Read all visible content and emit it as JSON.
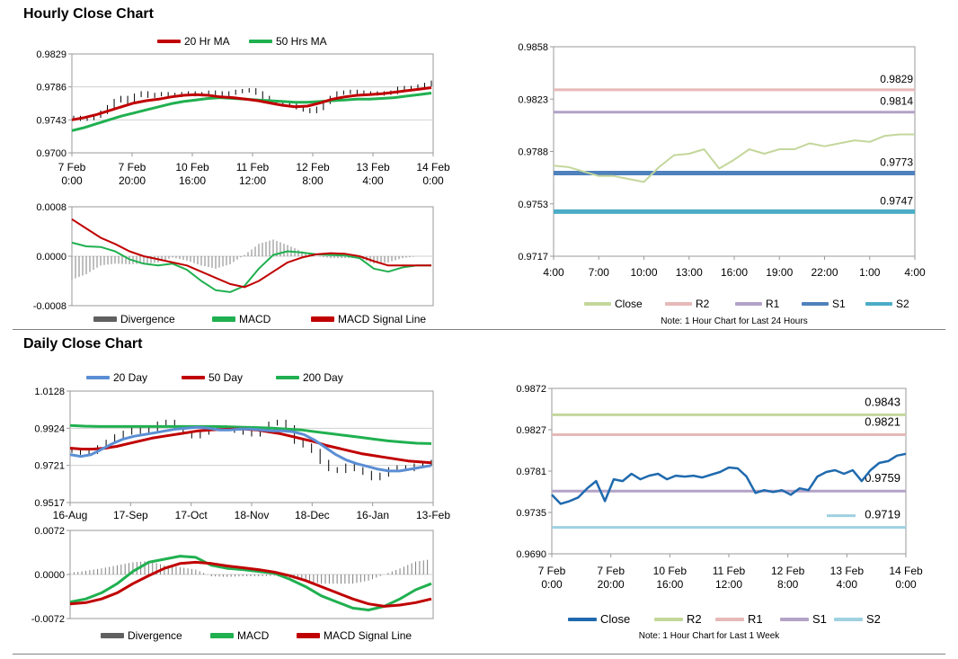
{
  "sections": {
    "hourly_title": "Hourly Close Chart",
    "daily_title": "Daily Close Chart"
  },
  "chart_data": [
    {
      "id": "hourly-price",
      "type": "line",
      "legend": [
        {
          "name": "20 Hr MA",
          "color": "#c00000"
        },
        {
          "name": "50 Hrs MA",
          "color": "#20b050"
        }
      ],
      "legend_placement": "top",
      "ylim": [
        0.97,
        0.9829
      ],
      "yticks": [
        "0.9829",
        "0.9786",
        "0.9743",
        "0.9700"
      ],
      "xticks": [
        [
          "7 Feb",
          "0:00"
        ],
        [
          "7 Feb",
          "20:00"
        ],
        [
          "10 Feb",
          "16:00"
        ],
        [
          "11 Feb",
          "12:00"
        ],
        [
          "12 Feb",
          "8:00"
        ],
        [
          "13 Feb",
          "4:00"
        ],
        [
          "14 Feb",
          "0:00"
        ]
      ],
      "grid": true,
      "price_series": [
        0.9746,
        0.9744,
        0.9745,
        0.9748,
        0.9753,
        0.976,
        0.9768,
        0.9772,
        0.9766,
        0.9775,
        0.9778,
        0.9774,
        0.9776,
        0.9777,
        0.9776,
        0.9775,
        0.9777,
        0.9778,
        0.9776,
        0.9777,
        0.9779,
        0.9778,
        0.9776,
        0.9778,
        0.978,
        0.9781,
        0.9782,
        0.9778,
        0.9772,
        0.9766,
        0.9764,
        0.9763,
        0.9762,
        0.9759,
        0.9756,
        0.9754,
        0.9758,
        0.9766,
        0.9772,
        0.9778,
        0.9779,
        0.978,
        0.9779,
        0.9778,
        0.9778,
        0.9777,
        0.9778,
        0.9779,
        0.9784,
        0.9785,
        0.9784,
        0.9787,
        0.9789,
        0.9792
      ],
      "series": [
        {
          "name": "20 Hr MA",
          "values": [
            0.9743,
            0.9746,
            0.975,
            0.9755,
            0.976,
            0.9765,
            0.9768,
            0.977,
            0.9773,
            0.9775,
            0.9776,
            0.9775,
            0.9773,
            0.9772,
            0.977,
            0.9768,
            0.9765,
            0.9762,
            0.976,
            0.9761,
            0.9765,
            0.977,
            0.9773,
            0.9775,
            0.9776,
            0.9777,
            0.9779,
            0.9781,
            0.9783,
            0.9785
          ]
        },
        {
          "name": "50 Hrs MA",
          "values": [
            0.9729,
            0.9733,
            0.9738,
            0.9743,
            0.9748,
            0.9752,
            0.9756,
            0.976,
            0.9764,
            0.9767,
            0.9769,
            0.9771,
            0.9772,
            0.9771,
            0.977,
            0.9769,
            0.9768,
            0.9767,
            0.9766,
            0.9766,
            0.9767,
            0.9768,
            0.9769,
            0.977,
            0.977,
            0.9771,
            0.9772,
            0.9774,
            0.9776,
            0.9778
          ]
        }
      ]
    },
    {
      "id": "hourly-macd",
      "type": "line",
      "legend": [
        {
          "name": "Divergence",
          "color": "#606060"
        },
        {
          "name": "MACD",
          "color": "#20b050"
        },
        {
          "name": "MACD Signal Line",
          "color": "#c00000"
        }
      ],
      "legend_placement": "bottom",
      "ylim": [
        -0.0008,
        0.0008
      ],
      "yticks": [
        "0.0008",
        "0.0000",
        "-0.0008"
      ],
      "grid": true,
      "series": [
        {
          "name": "MACD",
          "values": [
            0.00022,
            0.00016,
            0.00015,
            8e-05,
            -5e-05,
            -0.00012,
            -0.00015,
            -0.00012,
            -0.00022,
            -0.0004,
            -0.00055,
            -0.00058,
            -0.00048,
            -0.0002,
            2e-05,
            8e-05,
            6e-05,
            3e-05,
            2e-05,
            1e-05,
            -3e-05,
            -0.0002,
            -0.00025,
            -0.00018,
            -0.00015,
            -0.00015
          ]
        },
        {
          "name": "MACD Signal Line",
          "values": [
            0.0006,
            0.00045,
            0.0003,
            0.0002,
            8e-05,
            0.0,
            -5e-05,
            -0.0001,
            -0.00015,
            -0.00025,
            -0.00035,
            -0.00045,
            -0.0005,
            -0.0004,
            -0.00025,
            -0.0001,
            -2e-05,
            3e-05,
            5e-05,
            4e-05,
            0.0,
            -8e-05,
            -0.00015,
            -0.00015,
            -0.00015,
            -0.00015
          ]
        },
        {
          "name": "Divergence",
          "values": [
            -0.00038,
            -0.00029,
            -0.00015,
            -0.00012,
            -0.00013,
            -0.00012,
            -0.0001,
            -2e-05,
            -7e-05,
            -0.00015,
            -0.0002,
            -0.00013,
            2e-05,
            0.0002,
            0.00027,
            0.00018,
            8e-05,
            0.0,
            -3e-05,
            -3e-05,
            -3e-05,
            -0.00012,
            -0.0001,
            -3e-05,
            0.0,
            0.0
          ]
        }
      ]
    },
    {
      "id": "hourly-levels",
      "type": "line",
      "legend": [
        {
          "name": "Close",
          "color": "#c4d79b"
        },
        {
          "name": "R2",
          "color": "#e6b9b8"
        },
        {
          "name": "R1",
          "color": "#b3a2c7"
        },
        {
          "name": "S1",
          "color": "#4f81bd"
        },
        {
          "name": "S2",
          "color": "#4bacc6"
        }
      ],
      "legend_placement": "bottom",
      "note": "Note: 1 Hour Chart for Last 24 Hours",
      "ylim": [
        0.9717,
        0.9858
      ],
      "yticks": [
        "0.9858",
        "0.9823",
        "0.9788",
        "0.9753",
        "0.9717"
      ],
      "xticks": [
        "4:00",
        "7:00",
        "10:00",
        "13:00",
        "16:00",
        "19:00",
        "22:00",
        "1:00",
        "4:00"
      ],
      "grid": false,
      "series": [
        {
          "name": "Close",
          "values": [
            0.9778,
            0.9777,
            0.9774,
            0.9771,
            0.9771,
            0.9769,
            0.9767,
            0.9777,
            0.9785,
            0.9786,
            0.9789,
            0.9776,
            0.9782,
            0.9789,
            0.9786,
            0.9789,
            0.9789,
            0.9793,
            0.9791,
            0.9793,
            0.9795,
            0.9794,
            0.9798,
            0.9799,
            0.9799
          ]
        },
        {
          "name": "R2",
          "level": 0.9829
        },
        {
          "name": "R1",
          "level": 0.9814
        },
        {
          "name": "S1",
          "level": 0.9773
        },
        {
          "name": "S2",
          "level": 0.9747
        }
      ],
      "level_labels": [
        "0.9829",
        "0.9814",
        "0.9773",
        "0.9747"
      ]
    },
    {
      "id": "daily-price",
      "type": "line",
      "legend": [
        {
          "name": "20 Day",
          "color": "#5b8ed4"
        },
        {
          "name": "50 Day",
          "color": "#c00000"
        },
        {
          "name": "200 Day",
          "color": "#20b050"
        }
      ],
      "legend_placement": "top",
      "ylim": [
        0.9517,
        1.0128
      ],
      "yticks": [
        "1.0128",
        "0.9924",
        "0.9721",
        "0.9517"
      ],
      "xticks": [
        "16-Aug",
        "17-Sep",
        "17-Oct",
        "18-Nov",
        "18-Dec",
        "16-Jan",
        "13-Feb"
      ],
      "grid": true,
      "price_series": [
        0.98,
        0.979,
        0.9795,
        0.982,
        0.985,
        0.988,
        0.99,
        0.992,
        0.9905,
        0.992,
        0.995,
        0.996,
        0.993,
        0.99,
        0.988,
        0.99,
        0.992,
        0.993,
        0.992,
        0.991,
        0.99,
        0.989,
        0.992,
        0.995,
        0.996,
        0.993,
        0.985,
        0.983,
        0.98,
        0.974,
        0.97,
        0.969,
        0.972,
        0.97,
        0.968,
        0.965,
        0.967,
        0.97,
        0.971,
        0.97,
        0.972,
        0.973,
        0.974
      ],
      "series": [
        {
          "name": "20 Day",
          "values": [
            0.978,
            0.977,
            0.978,
            0.981,
            0.984,
            0.9865,
            0.988,
            0.989,
            0.99,
            0.991,
            0.992,
            0.9925,
            0.993,
            0.9925,
            0.9915,
            0.9915,
            0.992,
            0.992,
            0.9915,
            0.991,
            0.991,
            0.9905,
            0.989,
            0.986,
            0.982,
            0.978,
            0.975,
            0.973,
            0.9715,
            0.97,
            0.969,
            0.969,
            0.97,
            0.971,
            0.972
          ]
        },
        {
          "name": "50 Day",
          "values": [
            0.9815,
            0.981,
            0.981,
            0.9815,
            0.9825,
            0.984,
            0.9855,
            0.987,
            0.988,
            0.989,
            0.99,
            0.991,
            0.9915,
            0.9918,
            0.992,
            0.992,
            0.9915,
            0.9905,
            0.9895,
            0.988,
            0.9865,
            0.985,
            0.983,
            0.9815,
            0.98,
            0.9785,
            0.9775,
            0.9765,
            0.9755,
            0.9745,
            0.974,
            0.9735
          ]
        },
        {
          "name": "200 Day",
          "values": [
            0.994,
            0.9936,
            0.9934,
            0.9934,
            0.9934,
            0.9934,
            0.9934,
            0.9934,
            0.9934,
            0.9934,
            0.9934,
            0.9932,
            0.993,
            0.9928,
            0.9925,
            0.992,
            0.9915,
            0.9905,
            0.9895,
            0.9885,
            0.9875,
            0.9865,
            0.9855,
            0.9848,
            0.9842,
            0.984
          ]
        }
      ]
    },
    {
      "id": "daily-macd",
      "type": "line",
      "legend": [
        {
          "name": "Divergence",
          "color": "#606060"
        },
        {
          "name": "MACD",
          "color": "#20b050"
        },
        {
          "name": "MACD Signal Line",
          "color": "#c00000"
        }
      ],
      "legend_placement": "bottom",
      "ylim": [
        -0.0072,
        0.0072
      ],
      "yticks": [
        "0.0072",
        "0.0000",
        "-0.0072"
      ],
      "grid": true,
      "series": [
        {
          "name": "MACD",
          "values": [
            -0.0045,
            -0.004,
            -0.003,
            -0.0015,
            0.0005,
            0.002,
            0.0025,
            0.003,
            0.0028,
            0.0015,
            0.001,
            0.0008,
            0.0005,
            0.0002,
            -0.0008,
            -0.002,
            -0.0035,
            -0.0045,
            -0.0055,
            -0.0058,
            -0.0052,
            -0.004,
            -0.0025,
            -0.0015
          ]
        },
        {
          "name": "MACD Signal Line",
          "values": [
            -0.0048,
            -0.0046,
            -0.004,
            -0.003,
            -0.0015,
            -0.0002,
            0.001,
            0.0018,
            0.002,
            0.0018,
            0.0014,
            0.0011,
            0.0008,
            0.0004,
            -0.0002,
            -0.001,
            -0.002,
            -0.003,
            -0.004,
            -0.0048,
            -0.0052,
            -0.005,
            -0.0046,
            -0.004
          ]
        },
        {
          "name": "Divergence",
          "values": [
            0.0003,
            0.0006,
            0.001,
            0.0015,
            0.002,
            0.0022,
            0.0015,
            0.0012,
            0.0008,
            -0.0003,
            -0.0004,
            -0.0003,
            -0.0003,
            -0.0002,
            -0.0006,
            -0.001,
            -0.0015,
            -0.0015,
            -0.0015,
            -0.001,
            0.0,
            0.001,
            0.0021,
            0.0025
          ]
        }
      ]
    },
    {
      "id": "daily-levels",
      "type": "line",
      "legend": [
        {
          "name": "Close",
          "color": "#1f6aae"
        },
        {
          "name": "R2",
          "color": "#c4d79b"
        },
        {
          "name": "R1",
          "color": "#e6b9b8"
        },
        {
          "name": "S1",
          "color": "#b3a2c7"
        },
        {
          "name": "S2",
          "color": "#9fd1e0"
        }
      ],
      "legend_placement": "bottom",
      "note": "Note: 1 Hour Chart for Last 1 Week",
      "ylim": [
        0.969,
        0.9872
      ],
      "yticks": [
        "0.9872",
        "0.9827",
        "0.9781",
        "0.9735",
        "0.9690"
      ],
      "xticks": [
        [
          "7 Feb",
          "0:00"
        ],
        [
          "7 Feb",
          "20:00"
        ],
        [
          "10 Feb",
          "16:00"
        ],
        [
          "11 Feb",
          "12:00"
        ],
        [
          "12 Feb",
          "8:00"
        ],
        [
          "13 Feb",
          "4:00"
        ],
        [
          "14 Feb",
          "0:00"
        ]
      ],
      "grid": false,
      "series": [
        {
          "name": "Close",
          "values": [
            0.9755,
            0.9745,
            0.9748,
            0.9752,
            0.9762,
            0.977,
            0.9748,
            0.9772,
            0.977,
            0.9778,
            0.9772,
            0.9776,
            0.9778,
            0.9772,
            0.9776,
            0.9775,
            0.9776,
            0.9774,
            0.9777,
            0.978,
            0.9785,
            0.9784,
            0.9775,
            0.9757,
            0.976,
            0.9758,
            0.976,
            0.9755,
            0.9762,
            0.976,
            0.9775,
            0.978,
            0.9782,
            0.9778,
            0.9782,
            0.977,
            0.9782,
            0.979,
            0.9792,
            0.9798,
            0.98
          ]
        },
        {
          "name": "R2",
          "level": 0.9843
        },
        {
          "name": "R1",
          "level": 0.9821
        },
        {
          "name": "S1",
          "level": 0.9759
        },
        {
          "name": "S2",
          "level": 0.9719
        }
      ],
      "level_labels": [
        "0.9843",
        "0.9821",
        "0.9759",
        "0.9719"
      ]
    }
  ]
}
